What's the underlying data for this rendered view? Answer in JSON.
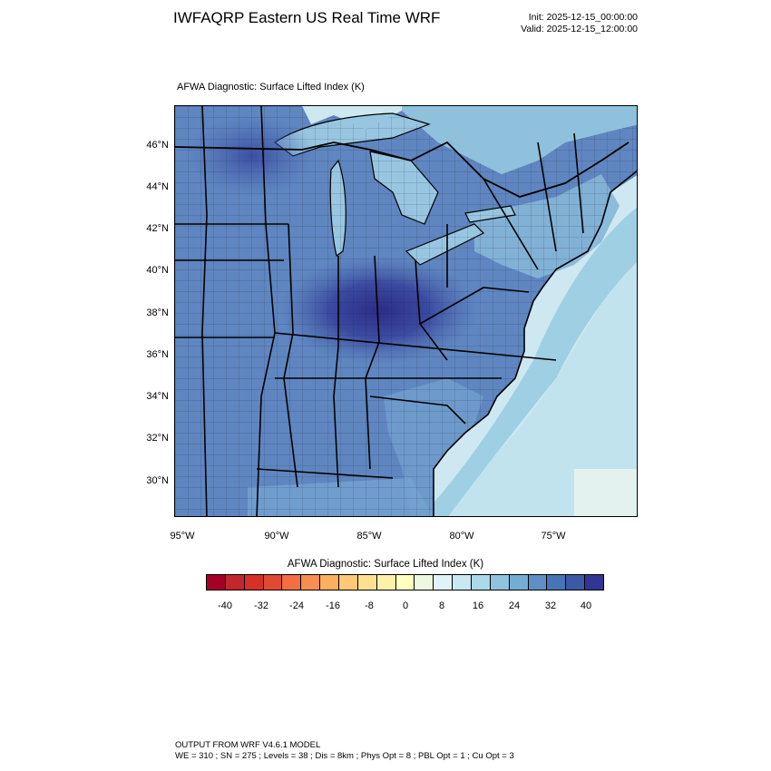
{
  "header": {
    "title": "IWFAQRP Eastern US Real Time WRF",
    "init": "Init: 2025-12-15_00:00:00",
    "valid": "Valid: 2025-12-15_12:00:00"
  },
  "map": {
    "subtitle": "AFWA Diagnostic: Surface Lifted Index   (K)",
    "lat_labels": [
      "46°N",
      "44°N",
      "42°N",
      "40°N",
      "38°N",
      "36°N",
      "34°N",
      "32°N",
      "30°N"
    ],
    "lon_labels": [
      "95°W",
      "90°W",
      "85°W",
      "80°W",
      "75°W"
    ]
  },
  "colorbar": {
    "title": "AFWA Diagnostic: Surface Lifted Index  (K)",
    "ticks": [
      "-40",
      "-32",
      "-24",
      "-16",
      "-8",
      "0",
      "8",
      "16",
      "24",
      "32",
      "40"
    ],
    "colors": [
      "#a50026",
      "#c1272d",
      "#d73027",
      "#e04a33",
      "#f46d43",
      "#f88d52",
      "#fdae61",
      "#fdc878",
      "#fee090",
      "#fef0a8",
      "#ffffbf",
      "#eef8e0",
      "#e0f3f8",
      "#c9e8f2",
      "#abd9e9",
      "#90c3dd",
      "#74add1",
      "#5f8fc4",
      "#4575b4",
      "#3b5aa5",
      "#313695"
    ]
  },
  "footer": {
    "line1": "OUTPUT FROM WRF V4.6.1 MODEL",
    "line2": "WE = 310 ; SN = 275 ; Levels = 38 ; Dis = 8km ; Phys Opt = 8 ; PBL Opt = 1 ; Cu Opt = 3"
  }
}
